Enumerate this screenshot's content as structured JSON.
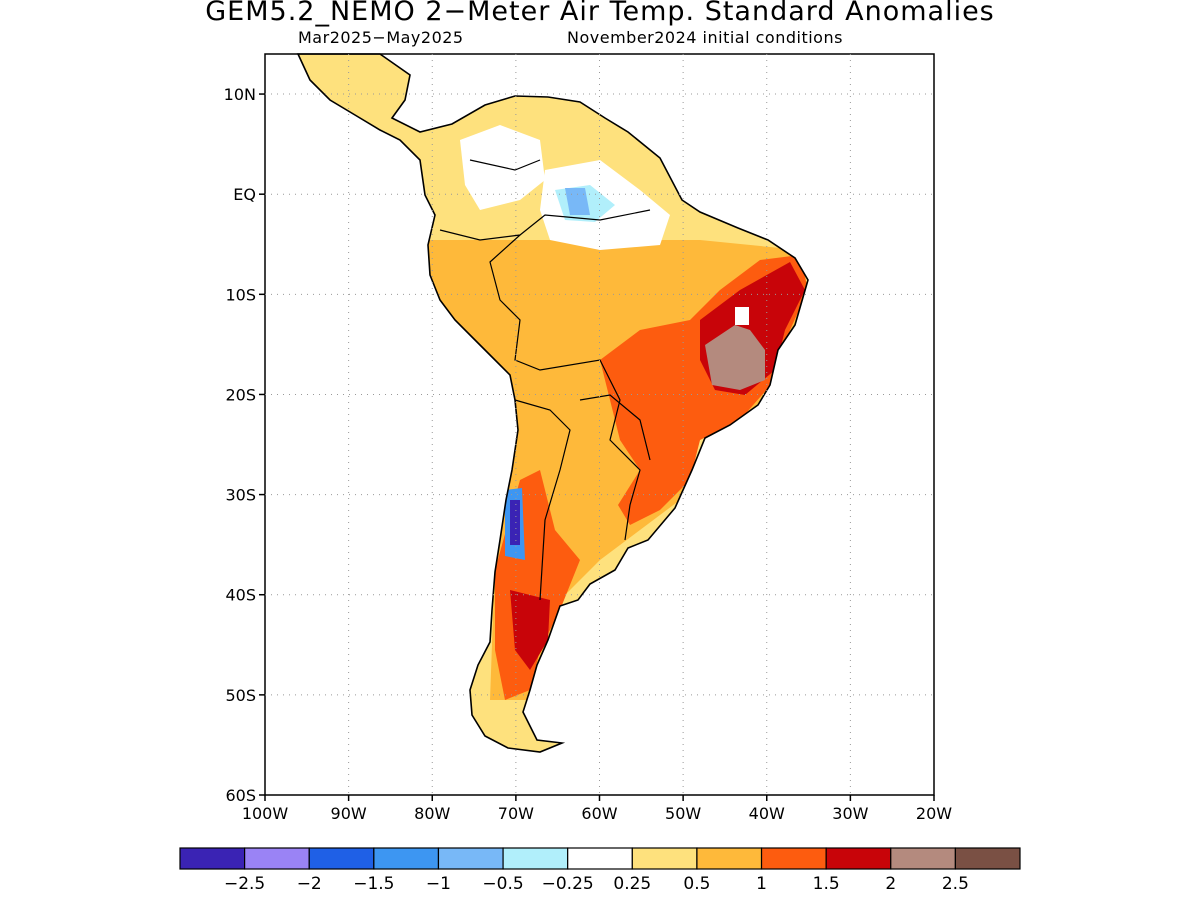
{
  "title": "GEM5.2_NEMO 2−Meter Air Temp. Standard Anomalies",
  "subtitle_left": "Mar2025−May2025",
  "subtitle_right": "November2024 initial conditions",
  "map": {
    "lon_range": [
      -100,
      -20
    ],
    "lat_range": [
      -60,
      14
    ],
    "lat_ticks": [
      "10N",
      "EQ",
      "10S",
      "20S",
      "30S",
      "40S",
      "50S",
      "60S"
    ],
    "lon_ticks": [
      "100W",
      "90W",
      "80W",
      "70W",
      "60W",
      "50W",
      "40W",
      "30W",
      "20W"
    ],
    "grid": "dotted"
  },
  "colorbar": {
    "colors": [
      "#3a23b4",
      "#9a83f5",
      "#1f60e6",
      "#3d96f2",
      "#78b8f7",
      "#b1effb",
      "#ffffff",
      "#fee17d",
      "#feb93a",
      "#fd5c0f",
      "#c80409",
      "#b48a7e",
      "#7a5044"
    ],
    "labels": [
      "−2.5",
      "−2",
      "−1.5",
      "−1",
      "−0.5",
      "−0.25",
      "0.25",
      "0.5",
      "1",
      "1.5",
      "2",
      "2.5"
    ]
  }
}
